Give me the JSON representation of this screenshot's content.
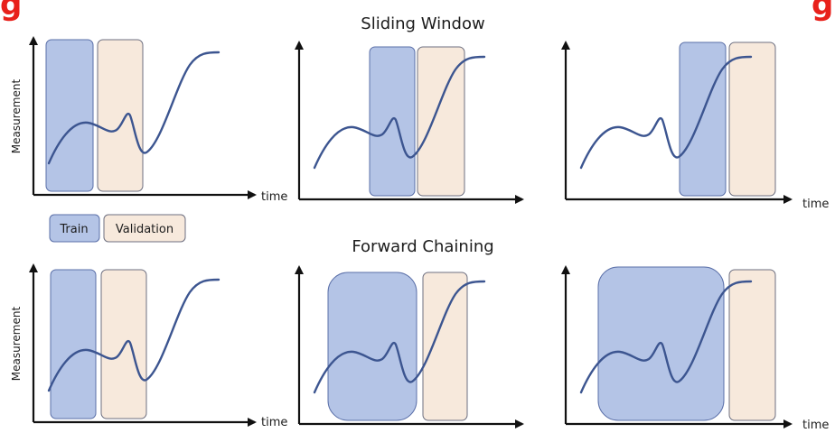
{
  "colors": {
    "train_fill": "#b4c4e6",
    "train_stroke": "#5a6fa8",
    "validation_fill": "#f7e9dc",
    "validation_stroke": "#6d6f80",
    "curve": "#3c5590",
    "axis": "#111111",
    "title": "#e8211b"
  },
  "title": {
    "left_fragment": "g",
    "right_fragment": "g"
  },
  "sections": {
    "sliding_window": "Sliding Window",
    "forward_chaining": "Forward Chaining"
  },
  "axis": {
    "y_label": "Measurement",
    "x_label": "time"
  },
  "legend": {
    "train": "Train",
    "validation": "Validation"
  }
}
